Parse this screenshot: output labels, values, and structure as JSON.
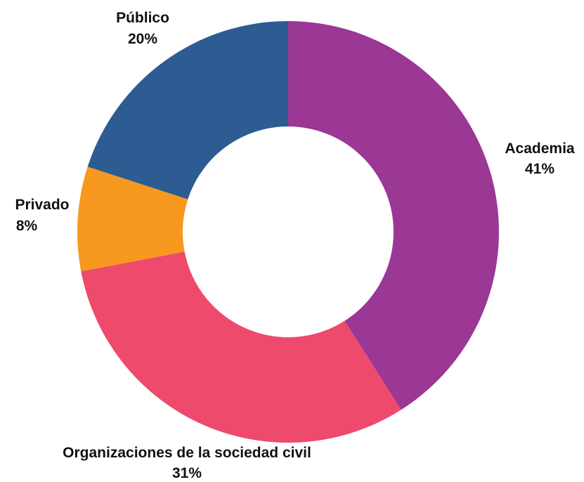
{
  "chart_data": {
    "type": "pie",
    "donut": true,
    "categories": [
      "Academia",
      "Organizaciones de la sociedad civil",
      "Privado",
      "Público"
    ],
    "values": [
      41,
      31,
      8,
      20
    ],
    "value_labels": [
      "41%",
      "31%",
      "8%",
      "20%"
    ],
    "colors": [
      "#9b3794",
      "#ee4a6c",
      "#f7981f",
      "#2d5c93"
    ],
    "start": "12 o'clock",
    "direction": "clockwise",
    "legend": "none"
  }
}
